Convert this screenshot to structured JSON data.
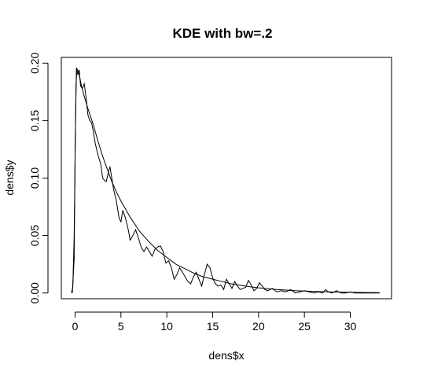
{
  "chart_data": {
    "type": "line",
    "title": "KDE with bw=.2",
    "xlabel": "dens$x",
    "ylabel": "dens$y",
    "xlim": [
      -1.5,
      34.5
    ],
    "ylim": [
      -0.005,
      0.205
    ],
    "xticks": [
      0,
      5,
      10,
      15,
      20,
      25,
      30
    ],
    "xtick_labels": [
      "0",
      "5",
      "10",
      "15",
      "20",
      "25",
      "30"
    ],
    "yticks": [
      0.0,
      0.05,
      0.1,
      0.15,
      0.2
    ],
    "ytick_labels": [
      "0.00",
      "0.05",
      "0.10",
      "0.15",
      "0.20"
    ],
    "grid": false,
    "legend": "none",
    "series": [
      {
        "x": [
          -0.4,
          -0.25,
          -0.1,
          0.05,
          0.15,
          0.3,
          0.45,
          0.6,
          0.8,
          1.0,
          1.2,
          1.4,
          1.6,
          1.8,
          2.0,
          2.2,
          2.5,
          2.8,
          3.0,
          3.2,
          3.4,
          3.6,
          3.8,
          4.0,
          4.2,
          4.5,
          4.8,
          5.0,
          5.2,
          5.5,
          5.8,
          6.0,
          6.3,
          6.6,
          6.9,
          7.2,
          7.5,
          7.8,
          8.1,
          8.4,
          8.7,
          9.0,
          9.3,
          9.6,
          9.9,
          10.2,
          10.5,
          10.8,
          11.1,
          11.4,
          11.7,
          12.0,
          12.3,
          12.6,
          12.9,
          13.2,
          13.5,
          13.8,
          14.1,
          14.4,
          14.7,
          15.0,
          15.3,
          15.6,
          15.9,
          16.2,
          16.5,
          16.8,
          17.1,
          17.4,
          17.7,
          18.0,
          18.3,
          18.6,
          18.9,
          19.2,
          19.5,
          19.8,
          20.1,
          20.4,
          20.7,
          21.0,
          21.5,
          22.0,
          22.5,
          23.0,
          23.5,
          24.0,
          24.5,
          25.0,
          25.5,
          26.0,
          26.5,
          27.0,
          27.3,
          27.6,
          28.0,
          28.5,
          29.0,
          29.5,
          30.0,
          30.5,
          31.0,
          31.5,
          32.0,
          32.4,
          32.8,
          33.2
        ],
        "y": [
          0.0,
          0.005,
          0.05,
          0.15,
          0.196,
          0.19,
          0.194,
          0.18,
          0.178,
          0.182,
          0.17,
          0.155,
          0.15,
          0.148,
          0.14,
          0.13,
          0.12,
          0.112,
          0.1,
          0.098,
          0.097,
          0.104,
          0.11,
          0.1,
          0.09,
          0.08,
          0.065,
          0.062,
          0.072,
          0.065,
          0.055,
          0.046,
          0.05,
          0.055,
          0.048,
          0.04,
          0.036,
          0.04,
          0.036,
          0.032,
          0.038,
          0.04,
          0.041,
          0.036,
          0.026,
          0.028,
          0.022,
          0.012,
          0.016,
          0.022,
          0.018,
          0.014,
          0.01,
          0.008,
          0.014,
          0.018,
          0.012,
          0.006,
          0.016,
          0.025,
          0.022,
          0.013,
          0.008,
          0.006,
          0.007,
          0.003,
          0.012,
          0.008,
          0.004,
          0.01,
          0.006,
          0.003,
          0.004,
          0.005,
          0.011,
          0.007,
          0.002,
          0.004,
          0.009,
          0.006,
          0.003,
          0.002,
          0.004,
          0.001,
          0.002,
          0.001,
          0.003,
          0.0,
          0.001,
          0.002,
          0.001,
          0.0,
          0.001,
          0.0,
          0.003,
          0.001,
          0.0,
          0.002,
          0.0,
          0.0,
          0.001,
          0.0,
          0.0,
          0.0,
          0.0,
          0.0,
          0.0,
          0.0
        ]
      },
      {
        "x": [
          -0.3,
          -0.1,
          0.0,
          0.1,
          0.2,
          0.4,
          0.7,
          1.0,
          1.5,
          2.0,
          2.5,
          3.0,
          3.5,
          4.0,
          4.5,
          5.0,
          6.0,
          7.0,
          8.0,
          9.0,
          10.0,
          11.0,
          12.0,
          13.0,
          14.0,
          15.0,
          16.0,
          17.0,
          18.0,
          19.0,
          20.0,
          22.0,
          24.0,
          26.0,
          28.0,
          30.0,
          32.0,
          33.2
        ],
        "y": [
          0.0,
          0.03,
          0.12,
          0.18,
          0.195,
          0.192,
          0.18,
          0.171,
          0.158,
          0.146,
          0.132,
          0.119,
          0.108,
          0.097,
          0.088,
          0.08,
          0.066,
          0.054,
          0.045,
          0.037,
          0.031,
          0.025,
          0.021,
          0.017,
          0.014,
          0.012,
          0.01,
          0.008,
          0.0067,
          0.0055,
          0.0045,
          0.003,
          0.002,
          0.0014,
          0.0009,
          0.0006,
          0.0004,
          0.0003
        ]
      }
    ]
  }
}
